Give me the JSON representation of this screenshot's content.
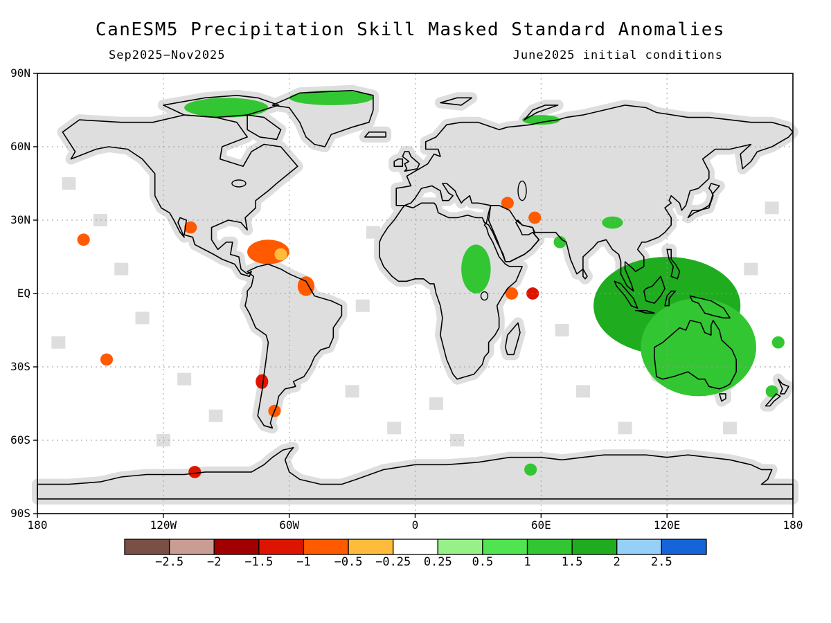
{
  "title": "CanESM5 Precipitation Skill Masked Standard Anomalies",
  "subtitle_left": "Sep2025−Nov2025",
  "subtitle_right": "June2025 initial conditions",
  "lat_labels": [
    "90N",
    "60N",
    "30N",
    "EQ",
    "30S",
    "60S",
    "90S"
  ],
  "lon_labels": [
    "180",
    "120W",
    "60W",
    "0",
    "60E",
    "120E",
    "180"
  ],
  "colorbar": {
    "colors": [
      "#7a4f45",
      "#c99c94",
      "#a00000",
      "#dd1500",
      "#ff5a00",
      "#ffbb3c",
      "#ffffff",
      "#98f088",
      "#50e450",
      "#33c633",
      "#1fac1f",
      "#96d0f8",
      "#1565d8"
    ],
    "labels": [
      "−2.5",
      "−2",
      "−1.5",
      "−1",
      "−0.5",
      "−0.25",
      "0.25",
      "0.5",
      "1",
      "1.5",
      "2",
      "2.5"
    ]
  },
  "map_colors": {
    "masked_land": "#dedede",
    "coastline": "#000000",
    "gridline": "#9a9a9a"
  },
  "anomaly_regions": [
    {
      "name": "western-mexico-dry",
      "lon": -107,
      "lat": 27,
      "value": -1.0
    },
    {
      "name": "caribbean-dry",
      "lon": -70,
      "lat": 17,
      "value": -0.75
    },
    {
      "name": "venezuela-dry",
      "lon": -64,
      "lat": 16,
      "value": -0.4
    },
    {
      "name": "northern-brazil-dry",
      "lon": -52,
      "lat": 3,
      "value": -0.75
    },
    {
      "name": "chile-dry",
      "lon": -73,
      "lat": -36,
      "value": -1.5
    },
    {
      "name": "patagonia-dry",
      "lon": -67,
      "lat": -48,
      "value": -1.0
    },
    {
      "name": "south-pacific-dry",
      "lon": -147,
      "lat": -27,
      "value": -0.75
    },
    {
      "name": "hawaii-dry",
      "lon": -158,
      "lat": 22,
      "value": -0.75
    },
    {
      "name": "greenland-wet",
      "lon": -40,
      "lat": 80,
      "value": 1.2
    },
    {
      "name": "arctic-canada-wet",
      "lon": -90,
      "lat": 76,
      "value": 1.0
    },
    {
      "name": "east-africa-wet",
      "lon": 29,
      "lat": 10,
      "value": 1.2
    },
    {
      "name": "horn-of-africa-dry",
      "lon": 46,
      "lat": 0,
      "value": -1.0
    },
    {
      "name": "gulf-of-aden-dry",
      "lon": 56,
      "lat": 0,
      "value": -1.2
    },
    {
      "name": "middle-east-dry",
      "lon": 44,
      "lat": 37,
      "value": -1.0
    },
    {
      "name": "iran-dry",
      "lon": 57,
      "lat": 31,
      "value": -1.0
    },
    {
      "name": "arabian-sea-wet",
      "lon": 69,
      "lat": 21,
      "value": 1.0
    },
    {
      "name": "tibet-wet",
      "lon": 94,
      "lat": 29,
      "value": 1.0
    },
    {
      "name": "maritime-continent-wet",
      "lon": 120,
      "lat": -5,
      "value": 1.5
    },
    {
      "name": "australia-wet",
      "lon": 135,
      "lat": -22,
      "value": 1.2
    },
    {
      "name": "new-zealand-wet",
      "lon": 170,
      "lat": -40,
      "value": 1.2
    },
    {
      "name": "southwest-pacific-wet",
      "lon": 173,
      "lat": -20,
      "value": 1.2
    },
    {
      "name": "siberia-wet",
      "lon": 60,
      "lat": 71,
      "value": 1.2
    },
    {
      "name": "antarctic-dry",
      "lon": -105,
      "lat": -73,
      "value": -1.2
    },
    {
      "name": "antarctic-wet",
      "lon": 55,
      "lat": -72,
      "value": 1.0
    }
  ]
}
